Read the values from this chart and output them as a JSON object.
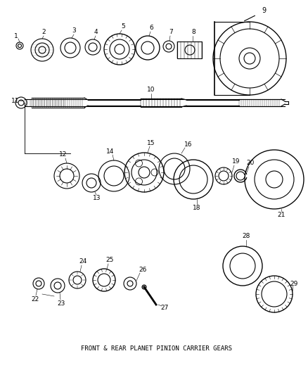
{
  "title": "",
  "subtitle": "FRONT & REAR PLANET PINION CARRIER GEARS",
  "background_color": "#ffffff",
  "line_color": "#000000",
  "text_color": "#000000",
  "parts": [
    1,
    2,
    3,
    4,
    5,
    6,
    7,
    8,
    9,
    10,
    11,
    12,
    13,
    14,
    15,
    16,
    18,
    19,
    20,
    21,
    22,
    23,
    24,
    25,
    26,
    27,
    28,
    29
  ],
  "figsize": [
    4.38,
    5.33
  ],
  "dpi": 100
}
